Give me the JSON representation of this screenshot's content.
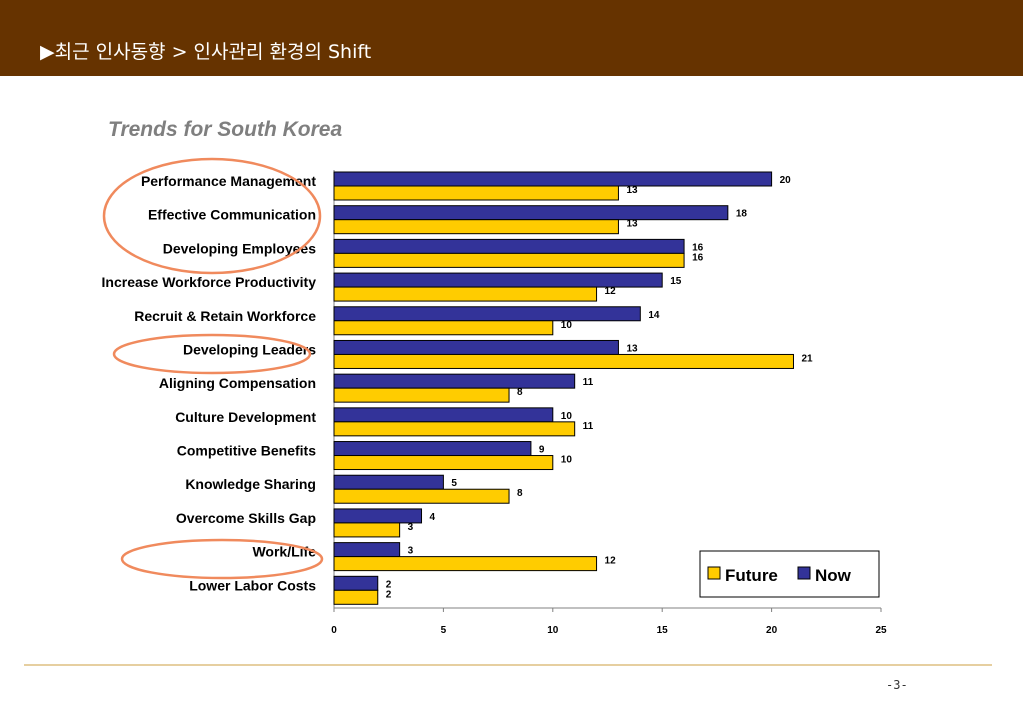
{
  "header": {
    "title": "▶최근 인사동향 > 인사관리 환경의 Shift"
  },
  "page_number": "-3-",
  "chart_data": {
    "type": "bar",
    "orientation": "horizontal",
    "title": "Trends for South Korea",
    "categories": [
      "Performance Management",
      "Effective Communication",
      "Developing Employees",
      "Increase Workforce Productivity",
      "Recruit & Retain Workforce",
      "Developing Leaders",
      "Aligning Compensation",
      "Culture Development",
      "Competitive Benefits",
      "Knowledge Sharing",
      "Overcome Skills Gap",
      "Work/Life",
      "Lower Labor Costs"
    ],
    "series": [
      {
        "name": "Now",
        "color": "#333399",
        "values": [
          20,
          18,
          16,
          15,
          14,
          13,
          11,
          10,
          9,
          5,
          4,
          3,
          2
        ]
      },
      {
        "name": "Future",
        "color": "#ffcc00",
        "values": [
          13,
          13,
          16,
          12,
          10,
          21,
          8,
          11,
          10,
          8,
          3,
          12,
          2
        ]
      }
    ],
    "xlim": [
      0,
      25
    ],
    "x_ticks": [
      "0",
      "5",
      "10",
      "15",
      "20",
      "25"
    ],
    "legend": {
      "position": "bottom-right",
      "order": [
        "Future",
        "Now"
      ]
    },
    "highlighted_categories": [
      "Performance Management",
      "Effective Communication",
      "Developing Employees",
      "Developing Leaders",
      "Work/Life"
    ],
    "highlight_color": "#f08a5d"
  }
}
